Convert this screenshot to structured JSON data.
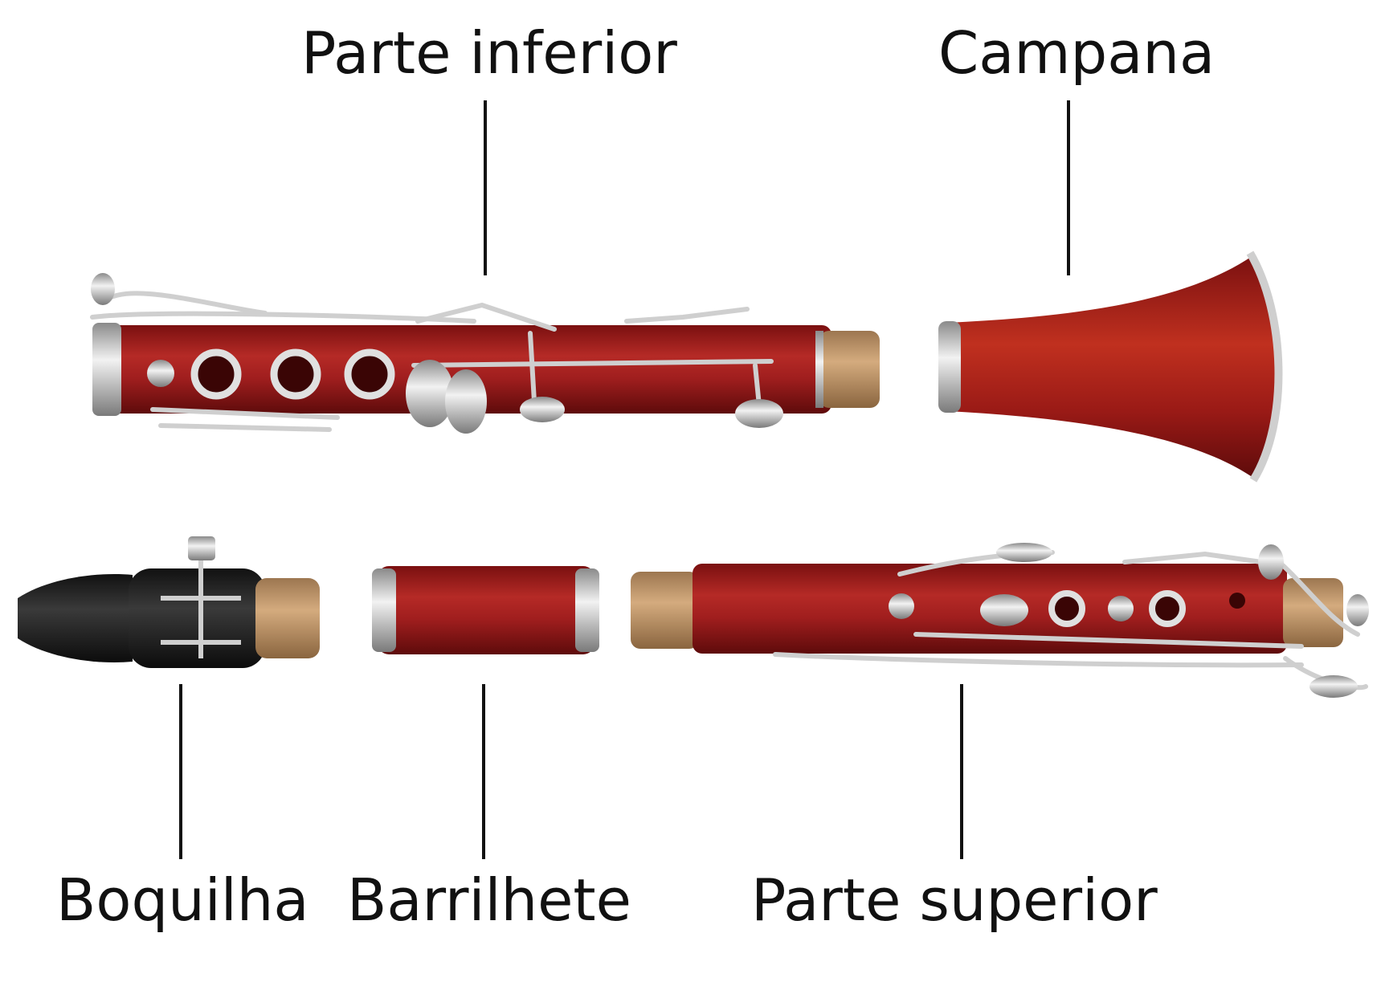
{
  "labels": {
    "parte_inferior": "Parte inferior",
    "campana": "Campana",
    "boquilha": "Boquilha",
    "barrilhete": "Barrilhete",
    "parte_superior": "Parte superior"
  },
  "colors": {
    "wood": "#9e1c1c",
    "wood_dark": "#6e0d0d",
    "metal": "#d4d4d4",
    "cork": "#c49a6c",
    "mouthpiece": "#222222",
    "leader_line": "#111111",
    "text": "#111111"
  }
}
